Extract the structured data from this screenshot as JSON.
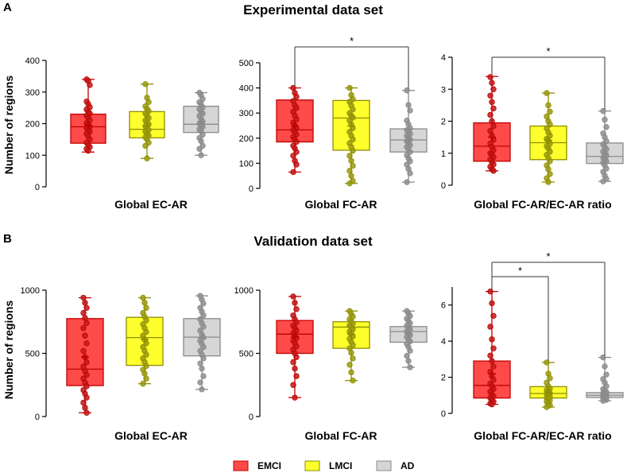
{
  "sections": [
    {
      "letter": "A",
      "title": "Experimental data set"
    },
    {
      "letter": "B",
      "title": "Validation data set"
    }
  ],
  "ylabel": "Number of regions",
  "legend": [
    {
      "name": "EMCI",
      "fill": "#ff4a4a",
      "stroke": "#c00000",
      "point": "#c01818"
    },
    {
      "name": "LMCI",
      "fill": "#ffff2e",
      "stroke": "#8e8e00",
      "point": "#9a9a10"
    },
    {
      "name": "AD",
      "fill": "#d6d6d6",
      "stroke": "#8a8a8a",
      "point": "#8e8e8e"
    }
  ],
  "colors": {
    "axis": "#000000",
    "bracket": "#333333",
    "text": "#000000"
  },
  "chart_data": [
    {
      "type": "box",
      "section": "A",
      "xlabel": "Global EC-AR",
      "ylabel": "Number of regions",
      "ylim": [
        0,
        400
      ],
      "yticks": [
        "0",
        "100",
        "200",
        "300",
        "400"
      ],
      "groups": [
        {
          "name": "EMCI",
          "min": 110,
          "q1": 138,
          "median": 190,
          "q3": 230,
          "max": 340,
          "mean": 193,
          "points": [
            340,
            335,
            322,
            270,
            262,
            252,
            245,
            238,
            232,
            225,
            218,
            210,
            202,
            196,
            190,
            186,
            180,
            175,
            168,
            160,
            150,
            140,
            132,
            126,
            120,
            114
          ]
        },
        {
          "name": "LMCI",
          "min": 90,
          "q1": 155,
          "median": 182,
          "q3": 238,
          "max": 325,
          "mean": 193,
          "points": [
            325,
            282,
            268,
            255,
            247,
            240,
            232,
            225,
            218,
            210,
            205,
            198,
            192,
            186,
            180,
            175,
            168,
            162,
            157,
            150,
            140,
            130,
            90
          ]
        },
        {
          "name": "AD",
          "min": 100,
          "q1": 172,
          "median": 198,
          "q3": 255,
          "max": 298,
          "mean": 205,
          "points": [
            298,
            290,
            278,
            268,
            262,
            252,
            246,
            238,
            232,
            224,
            215,
            206,
            200,
            195,
            190,
            182,
            176,
            165,
            155,
            145,
            130,
            120,
            100
          ]
        }
      ],
      "significance": []
    },
    {
      "type": "box",
      "section": "A",
      "xlabel": "Global FC-AR",
      "ylabel": "",
      "ylim": [
        0,
        500
      ],
      "yticks": [
        "0",
        "100",
        "200",
        "300",
        "400",
        "500"
      ],
      "groups": [
        {
          "name": "EMCI",
          "min": 65,
          "q1": 185,
          "median": 233,
          "q3": 352,
          "max": 400,
          "mean": 248,
          "points": [
            400,
            380,
            365,
            348,
            330,
            320,
            305,
            290,
            275,
            262,
            250,
            240,
            232,
            225,
            215,
            205,
            195,
            185,
            170,
            160,
            145,
            130,
            110,
            95,
            65
          ]
        },
        {
          "name": "LMCI",
          "min": 20,
          "q1": 152,
          "median": 280,
          "q3": 350,
          "max": 400,
          "mean": 248,
          "points": [
            400,
            372,
            355,
            345,
            330,
            315,
            300,
            290,
            282,
            270,
            255,
            240,
            225,
            210,
            195,
            180,
            165,
            150,
            130,
            110,
            90,
            70,
            50,
            30,
            20
          ]
        },
        {
          "name": "AD",
          "min": 25,
          "q1": 145,
          "median": 193,
          "q3": 237,
          "max": 390,
          "mean": 190,
          "points": [
            390,
            332,
            310,
            270,
            255,
            240,
            232,
            225,
            218,
            210,
            202,
            195,
            188,
            180,
            172,
            165,
            155,
            145,
            132,
            120,
            108,
            95,
            78,
            60,
            25
          ]
        }
      ],
      "significance": [
        {
          "from": 0,
          "to": 2,
          "label": "*"
        }
      ]
    },
    {
      "type": "box",
      "section": "A",
      "xlabel": "Global FC-AR/EC-AR ratio",
      "ylabel": "",
      "ylim": [
        0,
        4
      ],
      "yticks": [
        "0",
        "1",
        "2",
        "3",
        "4"
      ],
      "groups": [
        {
          "name": "EMCI",
          "min": 0.45,
          "q1": 0.75,
          "median": 1.22,
          "q3": 1.95,
          "max": 3.4,
          "mean": 1.5,
          "points": [
            3.38,
            3.2,
            3.0,
            2.8,
            2.6,
            2.4,
            2.2,
            2.0,
            1.85,
            1.7,
            1.55,
            1.42,
            1.3,
            1.2,
            1.1,
            1.0,
            0.95,
            0.88,
            0.8,
            0.72,
            0.65,
            0.58,
            0.5,
            0.45
          ]
        },
        {
          "name": "LMCI",
          "min": 0.1,
          "q1": 0.8,
          "median": 1.33,
          "q3": 1.85,
          "max": 2.88,
          "mean": 1.4,
          "points": [
            2.88,
            2.5,
            2.3,
            2.15,
            2.0,
            1.9,
            1.78,
            1.65,
            1.55,
            1.45,
            1.38,
            1.3,
            1.22,
            1.15,
            1.05,
            0.95,
            0.85,
            0.75,
            0.62,
            0.5,
            0.35,
            0.22,
            0.1
          ]
        },
        {
          "name": "AD",
          "min": 0.12,
          "q1": 0.68,
          "median": 0.9,
          "q3": 1.32,
          "max": 2.32,
          "mean": 1.0,
          "points": [
            2.32,
            2.05,
            1.82,
            1.62,
            1.5,
            1.38,
            1.28,
            1.2,
            1.12,
            1.05,
            0.98,
            0.92,
            0.86,
            0.8,
            0.75,
            0.7,
            0.62,
            0.52,
            0.42,
            0.3,
            0.2,
            0.12
          ]
        }
      ],
      "significance": [
        {
          "from": 0,
          "to": 2,
          "label": "*"
        }
      ]
    },
    {
      "type": "box",
      "section": "B",
      "xlabel": "Global EC-AR",
      "ylabel": "Number of regions",
      "ylim": [
        0,
        1000
      ],
      "yticks": [
        "0",
        "500",
        "1000"
      ],
      "groups": [
        {
          "name": "EMCI",
          "min": 30,
          "q1": 245,
          "median": 375,
          "q3": 775,
          "max": 940,
          "mean": 470,
          "points": [
            940,
            900,
            860,
            820,
            780,
            740,
            700,
            640,
            580,
            520,
            470,
            430,
            395,
            360,
            330,
            300,
            270,
            240,
            210,
            180,
            150,
            110,
            70,
            30
          ]
        },
        {
          "name": "LMCI",
          "min": 260,
          "q1": 405,
          "median": 625,
          "q3": 785,
          "max": 940,
          "mean": 610,
          "points": [
            940,
            900,
            860,
            820,
            790,
            760,
            730,
            700,
            670,
            640,
            610,
            580,
            550,
            520,
            490,
            460,
            430,
            400,
            370,
            340,
            300,
            260
          ]
        },
        {
          "name": "AD",
          "min": 215,
          "q1": 480,
          "median": 628,
          "q3": 775,
          "max": 955,
          "mean": 625,
          "points": [
            955,
            925,
            895,
            860,
            830,
            800,
            770,
            740,
            710,
            680,
            650,
            625,
            600,
            575,
            550,
            520,
            490,
            460,
            420,
            380,
            320,
            270,
            215
          ]
        }
      ],
      "significance": []
    },
    {
      "type": "box",
      "section": "B",
      "xlabel": "Global FC-AR",
      "ylabel": "",
      "ylim": [
        0,
        1000
      ],
      "yticks": [
        "0",
        "500",
        "1000"
      ],
      "groups": [
        {
          "name": "EMCI",
          "min": 150,
          "q1": 500,
          "median": 652,
          "q3": 760,
          "max": 950,
          "mean": 628,
          "points": [
            950,
            900,
            850,
            800,
            770,
            745,
            720,
            700,
            680,
            660,
            640,
            620,
            600,
            580,
            555,
            530,
            500,
            470,
            430,
            380,
            320,
            250,
            150
          ]
        },
        {
          "name": "LMCI",
          "min": 285,
          "q1": 540,
          "median": 708,
          "q3": 750,
          "max": 835,
          "mean": 650,
          "points": [
            835,
            810,
            790,
            770,
            750,
            735,
            720,
            705,
            690,
            672,
            655,
            635,
            615,
            590,
            565,
            540,
            505,
            460,
            410,
            350,
            285
          ]
        },
        {
          "name": "AD",
          "min": 390,
          "q1": 588,
          "median": 672,
          "q3": 712,
          "max": 835,
          "mean": 655,
          "points": [
            835,
            815,
            795,
            775,
            755,
            738,
            720,
            705,
            690,
            675,
            660,
            645,
            630,
            612,
            595,
            575,
            550,
            520,
            480,
            440,
            390
          ]
        }
      ],
      "significance": []
    },
    {
      "type": "box",
      "section": "B",
      "xlabel": "Global FC-AR/EC-AR ratio",
      "ylabel": "",
      "ylim": [
        0,
        7
      ],
      "yticks": [
        "0",
        "2",
        "4",
        "6"
      ],
      "groups": [
        {
          "name": "EMCI",
          "min": 0.5,
          "q1": 0.85,
          "median": 1.55,
          "q3": 2.9,
          "max": 6.75,
          "mean": 2.2,
          "points": [
            6.75,
            6.1,
            5.4,
            4.8,
            4.1,
            3.6,
            3.2,
            2.9,
            2.6,
            2.3,
            2.05,
            1.85,
            1.65,
            1.5,
            1.35,
            1.2,
            1.05,
            0.95,
            0.85,
            0.75,
            0.65,
            0.55,
            0.5
          ]
        },
        {
          "name": "LMCI",
          "min": 0.35,
          "q1": 0.85,
          "median": 1.1,
          "q3": 1.48,
          "max": 2.82,
          "mean": 1.15,
          "points": [
            2.82,
            2.2,
            1.95,
            1.7,
            1.5,
            1.38,
            1.28,
            1.2,
            1.12,
            1.05,
            0.98,
            0.92,
            0.86,
            0.8,
            0.72,
            0.65,
            0.55,
            0.45,
            0.35
          ]
        },
        {
          "name": "AD",
          "min": 0.7,
          "q1": 0.88,
          "median": 1.0,
          "q3": 1.15,
          "max": 3.1,
          "mean": 1.05,
          "points": [
            3.1,
            2.6,
            2.15,
            1.9,
            1.7,
            1.5,
            1.35,
            1.25,
            1.18,
            1.12,
            1.06,
            1.0,
            0.96,
            0.92,
            0.88,
            0.84,
            0.8,
            0.75,
            0.7
          ]
        }
      ],
      "significance": [
        {
          "from": 0,
          "to": 1,
          "label": "*"
        },
        {
          "from": 0,
          "to": 2,
          "label": "*"
        }
      ]
    }
  ]
}
